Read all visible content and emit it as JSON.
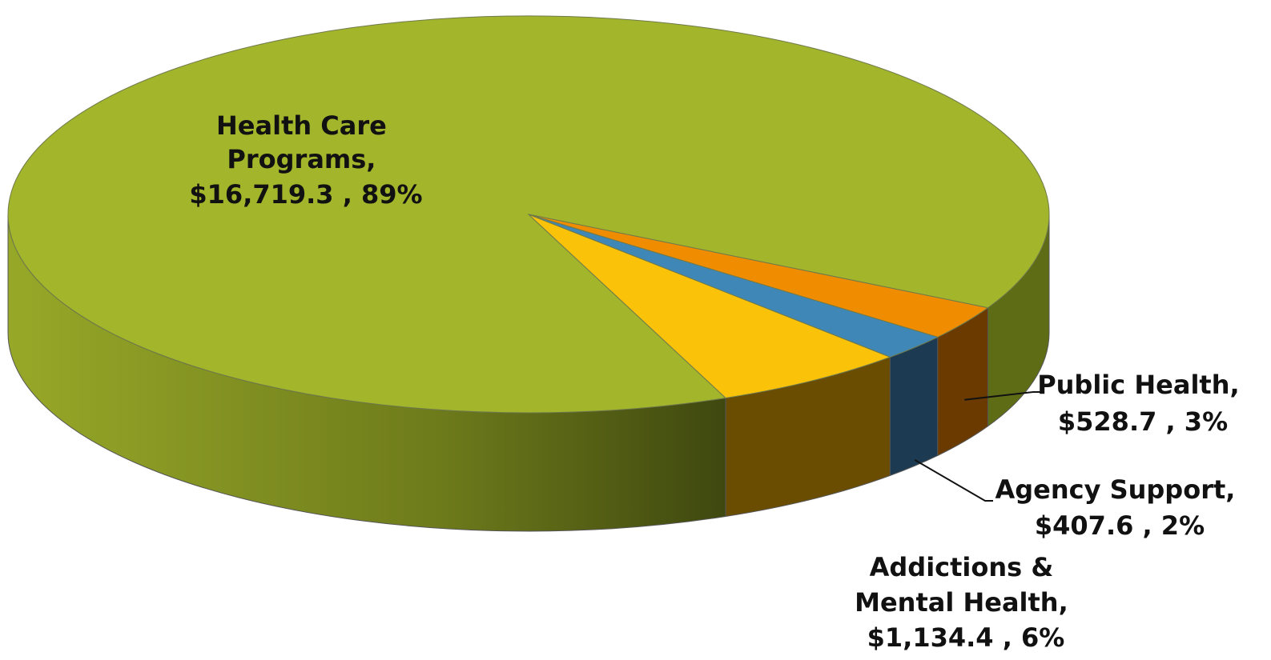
{
  "chart_data": {
    "type": "pie",
    "title": "",
    "slices": [
      {
        "name": "Health Care Programs",
        "value": 16719.3,
        "percent": 89,
        "value_label": "$16,719.3 , 89%",
        "color": "#a3b52b",
        "side_color": "#6f7d1c"
      },
      {
        "name": "Public Health",
        "value": 528.7,
        "percent": 3,
        "value_label": "$528.7 , 3%",
        "color": "#f08c00",
        "side_color": "#6a3a00"
      },
      {
        "name": "Agency Support",
        "value": 407.6,
        "percent": 2,
        "value_label": "$407.6 , 2%",
        "color": "#3f87b6",
        "side_color": "#1c3a52"
      },
      {
        "name": "Addictions & Mental Health",
        "value": 1134.4,
        "percent": 6,
        "value_label": "$1,134.4 , 6%",
        "color": "#fbc20a",
        "side_color": "#6a4d00"
      }
    ],
    "labels": [
      {
        "lines": [
          "Health Care",
          "Programs,",
          "$16,719.3 , 89%"
        ]
      },
      {
        "lines": [
          "Public Health,",
          "$528.7 , 3%"
        ]
      },
      {
        "lines": [
          "Agency Support,",
          "$407.6 , 2%"
        ]
      },
      {
        "lines": [
          "Addictions &",
          "Mental Health,",
          "$1,134.4 , 6%"
        ]
      }
    ]
  }
}
